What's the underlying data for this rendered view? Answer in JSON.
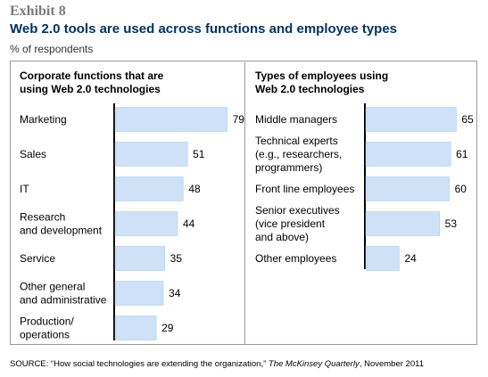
{
  "exhibit": "Exhibit 8",
  "title": "Web 2.0 tools are used across functions and employee types",
  "subtitle": "% of respondents",
  "source": {
    "prefix": "SOURCE: “How social technologies are extending the organization,” ",
    "publication": "The McKinsey Quarterly",
    "suffix": ", November 2011"
  },
  "colors": {
    "bar": "#cfe1f7",
    "bar_border": "#a9c6ea",
    "title": "#00325f",
    "axis": "#000000"
  },
  "chart_data": [
    {
      "type": "bar",
      "orientation": "horizontal",
      "title_lines": [
        "Corporate functions that are",
        "using Web 2.0 technologies"
      ],
      "categories": [
        [
          "Marketing"
        ],
        [
          "Sales"
        ],
        [
          "IT"
        ],
        [
          "Research",
          "and development"
        ],
        [
          "Service"
        ],
        [
          "Other general",
          "and administrative"
        ],
        [
          "Production/",
          "operations"
        ]
      ],
      "values": [
        79,
        51,
        48,
        44,
        35,
        34,
        29
      ],
      "xlim": [
        0,
        100
      ]
    },
    {
      "type": "bar",
      "orientation": "horizontal",
      "title_lines": [
        "Types of employees using",
        "Web 2.0 technologies"
      ],
      "categories": [
        [
          "Middle managers"
        ],
        [
          "Technical experts",
          "(e.g., researchers,",
          "programmers)"
        ],
        [
          "Front line employees"
        ],
        [
          "Senior executives",
          "(vice president",
          "and above)"
        ],
        [
          "Other employees"
        ]
      ],
      "values": [
        65,
        61,
        60,
        53,
        24
      ],
      "xlim": [
        0,
        100
      ]
    }
  ]
}
